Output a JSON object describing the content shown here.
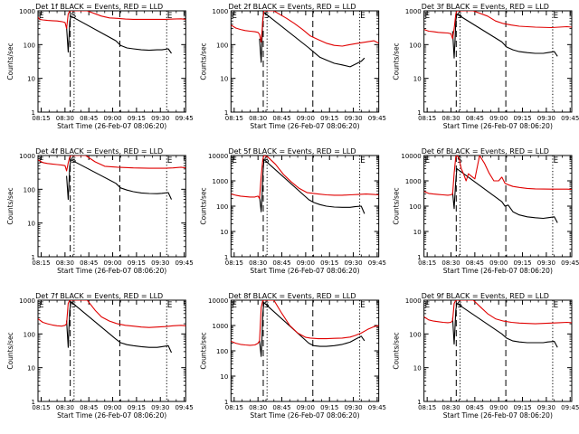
{
  "colors": {
    "events": "#000000",
    "lld": "#e00000",
    "axes": "#000000",
    "background": "#ffffff"
  },
  "shared": {
    "ylabel": "Counts/sec",
    "xlabel": "Start Time (26-Feb-07 08:06:20)",
    "yticks": [
      "1",
      "10",
      "100",
      "1000",
      "10000"
    ],
    "marker_labels": [
      "E",
      "S",
      "E"
    ]
  },
  "chart_data": [
    {
      "type": "line",
      "title": "Det 1f BLACK = Events, RED = LLD",
      "xticks": [
        "08:15",
        "08:30",
        "08:45",
        "09:00",
        "09:15",
        "09:30",
        "09:45"
      ],
      "ylim": [
        1,
        1000
      ],
      "log_y": true,
      "grid": false,
      "series": [
        {
          "name": "Events",
          "color": "#000000",
          "x": [
            18,
            19,
            19.5,
            20,
            20.7,
            49,
            52,
            56,
            60,
            65,
            70,
            75,
            78,
            82,
            84
          ],
          "y": [
            330,
            60,
            150,
            480,
            700,
            130,
            95,
            80,
            75,
            70,
            68,
            70,
            70,
            75,
            55
          ]
        },
        {
          "name": "LLD",
          "color": "#e00000",
          "x": [
            0,
            1,
            3,
            6,
            9,
            12,
            15,
            17,
            18,
            19,
            20,
            20.7,
            31,
            40,
            45,
            50,
            55,
            60,
            70,
            80,
            85,
            90,
            93
          ],
          "y": [
            650,
            560,
            540,
            520,
            510,
            500,
            480,
            450,
            300,
            800,
            1000,
            1000,
            1000,
            700,
            620,
            600,
            570,
            560,
            560,
            560,
            570,
            580,
            560
          ]
        }
      ]
    },
    {
      "type": "line",
      "title": "Det 2f BLACK = Events, RED = LLD",
      "xticks": [
        "08:15",
        "08:30",
        "08:45",
        "09:00",
        "09:15",
        "09:30",
        "09:45"
      ],
      "ylim": [
        1,
        1000
      ],
      "log_y": true,
      "grid": false,
      "series": [
        {
          "name": "Events",
          "color": "#000000",
          "x": [
            18,
            19,
            19.5,
            20,
            20.7,
            49,
            52,
            56,
            60,
            65,
            70,
            75,
            78,
            82,
            84
          ],
          "y": [
            150,
            30,
            130,
            600,
            900,
            80,
            60,
            42,
            35,
            28,
            25,
            22,
            26,
            32,
            40
          ]
        },
        {
          "name": "LLD",
          "color": "#e00000",
          "x": [
            0,
            3,
            6,
            9,
            12,
            15,
            17,
            18,
            19,
            20,
            20.7,
            27,
            35,
            40,
            45,
            50,
            55,
            60,
            65,
            70,
            75,
            80,
            85,
            90,
            93
          ],
          "y": [
            380,
            310,
            280,
            260,
            250,
            240,
            230,
            200,
            120,
            500,
            1000,
            1000,
            600,
            420,
            280,
            180,
            140,
            110,
            95,
            90,
            100,
            110,
            120,
            130,
            110
          ]
        }
      ]
    },
    {
      "type": "line",
      "title": "Det 3f BLACK = Events, RED = LLD",
      "xticks": [
        "08:15",
        "08:30",
        "08:45",
        "09:00",
        "09:15",
        "09:30",
        "09:45"
      ],
      "ylim": [
        1,
        1000
      ],
      "log_y": true,
      "grid": false,
      "series": [
        {
          "name": "Events",
          "color": "#000000",
          "x": [
            18,
            19,
            19.5,
            20,
            20.7,
            49,
            52,
            56,
            60,
            65,
            70,
            75,
            78,
            82,
            84
          ],
          "y": [
            250,
            40,
            120,
            500,
            800,
            120,
            85,
            70,
            62,
            58,
            55,
            55,
            58,
            62,
            45
          ]
        },
        {
          "name": "LLD",
          "color": "#e00000",
          "x": [
            0,
            3,
            6,
            9,
            12,
            15,
            17,
            18,
            19,
            20,
            20.7,
            31,
            40,
            45,
            50,
            55,
            60,
            70,
            80,
            85,
            90,
            93
          ],
          "y": [
            280,
            250,
            240,
            230,
            225,
            220,
            210,
            150,
            300,
            800,
            1000,
            1000,
            700,
            500,
            420,
            380,
            350,
            330,
            320,
            330,
            340,
            330
          ]
        }
      ]
    },
    {
      "type": "line",
      "title": "Det 4f BLACK = Events, RED = LLD",
      "xticks": [
        "08:15",
        "08:30",
        "08:45",
        "09:00",
        "09:15",
        "09:30",
        "09:45"
      ],
      "ylim": [
        1,
        1000
      ],
      "log_y": true,
      "grid": false,
      "series": [
        {
          "name": "Events",
          "color": "#000000",
          "x": [
            18,
            19,
            19.5,
            20,
            20.7,
            49,
            52,
            56,
            60,
            65,
            70,
            75,
            78,
            82,
            84
          ],
          "y": [
            250,
            50,
            140,
            480,
            750,
            150,
            110,
            95,
            85,
            78,
            75,
            74,
            76,
            80,
            50
          ]
        },
        {
          "name": "LLD",
          "color": "#e00000",
          "x": [
            0,
            3,
            6,
            9,
            12,
            15,
            17,
            18,
            19,
            20,
            20.7,
            30,
            36,
            42,
            50,
            60,
            70,
            80,
            85,
            90,
            93
          ],
          "y": [
            750,
            620,
            580,
            560,
            540,
            520,
            500,
            350,
            600,
            900,
            1000,
            1000,
            650,
            480,
            450,
            430,
            420,
            420,
            430,
            450,
            430
          ]
        }
      ]
    },
    {
      "type": "line",
      "title": "Det 5f BLACK = Events, RED = LLD",
      "xticks": [
        "08:15",
        "08:30",
        "08:45",
        "09:00",
        "09:15",
        "09:30",
        "09:45"
      ],
      "ylim": [
        1,
        10000
      ],
      "log_y": true,
      "grid": false,
      "series": [
        {
          "name": "Events",
          "color": "#000000",
          "x": [
            18,
            19,
            19.5,
            20,
            20.7,
            49,
            52,
            56,
            60,
            65,
            70,
            75,
            78,
            82,
            84
          ],
          "y": [
            250,
            60,
            200,
            1500,
            7000,
            180,
            140,
            115,
            100,
            92,
            90,
            90,
            95,
            100,
            50
          ]
        },
        {
          "name": "LLD",
          "color": "#e00000",
          "x": [
            0,
            3,
            6,
            9,
            12,
            15,
            17,
            18,
            19,
            20,
            20.7,
            23,
            28,
            33,
            38,
            43,
            48,
            55,
            60,
            65,
            70,
            75,
            80,
            85,
            90,
            93
          ],
          "y": [
            300,
            270,
            250,
            240,
            230,
            230,
            250,
            200,
            1500,
            7000,
            10000,
            9000,
            4500,
            1800,
            900,
            500,
            340,
            300,
            280,
            270,
            270,
            280,
            290,
            300,
            290,
            280
          ]
        }
      ]
    },
    {
      "type": "line",
      "title": "Det 6f BLACK = Events, RED = LLD",
      "xticks": [
        "08:15",
        "08:30",
        "08:45",
        "09:00",
        "09:15",
        "09:30",
        "09:45"
      ],
      "ylim": [
        1,
        10000
      ],
      "log_y": true,
      "grid": false,
      "series": [
        {
          "name": "Events",
          "color": "#000000",
          "x": [
            18,
            19,
            19.5,
            20,
            20.7,
            49,
            51,
            53,
            56,
            60,
            65,
            70,
            75,
            78,
            82,
            84
          ],
          "y": [
            350,
            80,
            300,
            1000,
            3000,
            150,
            100,
            110,
            60,
            45,
            38,
            35,
            33,
            35,
            38,
            22
          ]
        },
        {
          "name": "LLD",
          "color": "#e00000",
          "x": [
            0,
            3,
            6,
            9,
            12,
            15,
            17,
            18,
            19,
            20,
            20.7,
            22,
            23.5,
            25,
            26.5,
            28,
            30,
            32,
            35,
            38,
            41,
            44,
            47,
            49,
            51,
            53,
            56,
            60,
            65,
            70,
            80,
            90,
            93
          ],
          "y": [
            380,
            320,
            300,
            290,
            280,
            270,
            280,
            300,
            2000,
            9000,
            10000,
            8000,
            3000,
            1800,
            1000,
            1900,
            1500,
            1200,
            10000,
            5000,
            2000,
            1000,
            1000,
            1400,
            800,
            700,
            600,
            550,
            500,
            480,
            470,
            470,
            460
          ]
        }
      ]
    },
    {
      "type": "line",
      "title": "Det 7f BLACK = Events, RED = LLD",
      "xticks": [
        "08:15",
        "08:30",
        "08:45",
        "09:00",
        "09:15",
        "09:30",
        "09:45"
      ],
      "ylim": [
        1,
        1000
      ],
      "log_y": true,
      "grid": false,
      "series": [
        {
          "name": "Events",
          "color": "#000000",
          "x": [
            18,
            19,
            19.5,
            20,
            20.7,
            49,
            52,
            56,
            60,
            65,
            70,
            75,
            78,
            82,
            84
          ],
          "y": [
            250,
            40,
            150,
            500,
            900,
            70,
            55,
            48,
            45,
            42,
            40,
            40,
            42,
            45,
            28
          ]
        },
        {
          "name": "LLD",
          "color": "#e00000",
          "x": [
            0,
            3,
            6,
            9,
            12,
            15,
            17,
            18,
            19,
            20,
            20.7,
            31,
            36,
            40,
            45,
            50,
            55,
            60,
            65,
            70,
            75,
            80,
            85,
            90,
            93
          ],
          "y": [
            280,
            220,
            200,
            185,
            175,
            170,
            180,
            200,
            800,
            1000,
            1000,
            1000,
            500,
            320,
            240,
            200,
            180,
            170,
            160,
            155,
            160,
            165,
            175,
            180,
            175
          ]
        }
      ]
    },
    {
      "type": "line",
      "title": "Det 8f BLACK = Events, RED = LLD",
      "xticks": [
        "08:15",
        "08:30",
        "08:45",
        "09:00",
        "09:15",
        "09:30",
        "09:45"
      ],
      "ylim": [
        1,
        10000
      ],
      "log_y": true,
      "grid": false,
      "series": [
        {
          "name": "Events",
          "color": "#000000",
          "x": [
            18,
            19,
            19.5,
            20,
            20.7,
            49,
            52,
            56,
            60,
            65,
            70,
            75,
            78,
            82,
            84
          ],
          "y": [
            250,
            60,
            300,
            3000,
            8000,
            200,
            160,
            150,
            150,
            160,
            180,
            220,
            280,
            380,
            250
          ]
        },
        {
          "name": "LLD",
          "color": "#e00000",
          "x": [
            0,
            3,
            6,
            9,
            12,
            15,
            17,
            18,
            19,
            20,
            20.7,
            27,
            32,
            37,
            42,
            47,
            50,
            55,
            60,
            65,
            70,
            75,
            78,
            82,
            86,
            90,
            93
          ],
          "y": [
            240,
            200,
            180,
            170,
            165,
            170,
            200,
            250,
            5000,
            10000,
            10000,
            10000,
            3000,
            1000,
            500,
            340,
            320,
            300,
            300,
            310,
            320,
            350,
            400,
            500,
            700,
            900,
            1000
          ]
        }
      ]
    },
    {
      "type": "line",
      "title": "Det 9f BLACK = Events, RED = LLD",
      "xticks": [
        "08:15",
        "08:30",
        "08:45",
        "09:00",
        "09:15",
        "09:30",
        "09:45"
      ],
      "ylim": [
        1,
        1000
      ],
      "log_y": true,
      "grid": false,
      "series": [
        {
          "name": "Events",
          "color": "#000000",
          "x": [
            18,
            19,
            19.5,
            20,
            20.7,
            49,
            52,
            56,
            60,
            65,
            70,
            75,
            78,
            82,
            84
          ],
          "y": [
            300,
            50,
            150,
            500,
            800,
            100,
            75,
            62,
            58,
            55,
            55,
            55,
            58,
            60,
            40
          ]
        },
        {
          "name": "LLD",
          "color": "#e00000",
          "x": [
            0,
            3,
            6,
            9,
            12,
            15,
            17,
            18,
            19,
            20,
            20.7,
            31,
            36,
            40,
            45,
            50,
            55,
            60,
            65,
            70,
            75,
            80,
            85,
            90,
            93
          ],
          "y": [
            320,
            260,
            240,
            230,
            220,
            215,
            220,
            250,
            800,
            1000,
            1000,
            1000,
            600,
            400,
            280,
            240,
            220,
            210,
            205,
            200,
            205,
            210,
            215,
            220,
            215
          ]
        }
      ]
    }
  ]
}
